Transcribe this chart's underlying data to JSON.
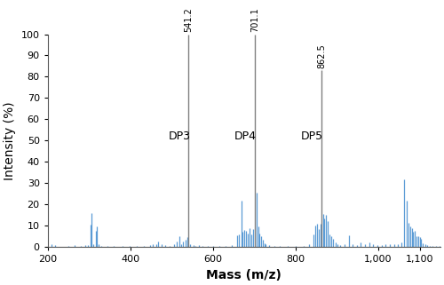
{
  "xlabel": "Mass (m/z)",
  "ylabel": "Intensity (%)",
  "xlim": [
    200,
    1150
  ],
  "ylim": [
    0,
    100
  ],
  "xticks": [
    200,
    400,
    600,
    800,
    1000,
    1100
  ],
  "xtick_labels": [
    "200",
    "400",
    "600",
    "800",
    "1,000",
    "1,100"
  ],
  "yticks": [
    0,
    10,
    20,
    30,
    40,
    50,
    60,
    70,
    80,
    90,
    100
  ],
  "bg_color": "#ffffff",
  "bar_color": "#5b9bd5",
  "tall_bar_color": "#808080",
  "annotations": [
    {
      "x": 541.2,
      "label": "541.2",
      "height": 100,
      "dp": "DP3",
      "dp_x": 492,
      "dp_y": 52
    },
    {
      "x": 701.1,
      "label": "701.1",
      "height": 100,
      "dp": "DP4",
      "dp_x": 652,
      "dp_y": 52
    },
    {
      "x": 862.5,
      "label": "862.5",
      "height": 83,
      "dp": "DP5",
      "dp_x": 812,
      "dp_y": 52
    }
  ],
  "peaks": [
    [
      210,
      1.5
    ],
    [
      218,
      0.8
    ],
    [
      250,
      0.5
    ],
    [
      265,
      0.8
    ],
    [
      280,
      0.5
    ],
    [
      290,
      1.0
    ],
    [
      298,
      0.8
    ],
    [
      303,
      10.5
    ],
    [
      306,
      16.0
    ],
    [
      311,
      1.5
    ],
    [
      316,
      7.5
    ],
    [
      319,
      9.5
    ],
    [
      323,
      1.2
    ],
    [
      330,
      0.5
    ],
    [
      345,
      0.5
    ],
    [
      360,
      0.5
    ],
    [
      380,
      0.5
    ],
    [
      398,
      0.5
    ],
    [
      415,
      0.5
    ],
    [
      432,
      0.5
    ],
    [
      448,
      0.8
    ],
    [
      455,
      1.2
    ],
    [
      462,
      1.5
    ],
    [
      468,
      2.5
    ],
    [
      475,
      1.5
    ],
    [
      485,
      0.8
    ],
    [
      495,
      0.5
    ],
    [
      505,
      1.5
    ],
    [
      512,
      2.5
    ],
    [
      518,
      5.0
    ],
    [
      522,
      1.2
    ],
    [
      528,
      2.5
    ],
    [
      533,
      3.5
    ],
    [
      538,
      4.5
    ],
    [
      541,
      100.0
    ],
    [
      545,
      1.2
    ],
    [
      552,
      0.8
    ],
    [
      558,
      0.5
    ],
    [
      565,
      0.8
    ],
    [
      575,
      0.5
    ],
    [
      588,
      0.5
    ],
    [
      600,
      0.5
    ],
    [
      615,
      0.5
    ],
    [
      630,
      0.5
    ],
    [
      645,
      0.8
    ],
    [
      658,
      5.5
    ],
    [
      663,
      6.0
    ],
    [
      668,
      22.0
    ],
    [
      672,
      7.0
    ],
    [
      676,
      8.0
    ],
    [
      680,
      7.5
    ],
    [
      684,
      6.5
    ],
    [
      688,
      9.0
    ],
    [
      693,
      6.0
    ],
    [
      697,
      8.5
    ],
    [
      701,
      100.0
    ],
    [
      705,
      25.5
    ],
    [
      709,
      9.5
    ],
    [
      712,
      6.5
    ],
    [
      716,
      5.0
    ],
    [
      720,
      3.5
    ],
    [
      724,
      1.8
    ],
    [
      728,
      1.5
    ],
    [
      735,
      0.8
    ],
    [
      748,
      0.5
    ],
    [
      762,
      0.5
    ],
    [
      780,
      0.5
    ],
    [
      800,
      0.5
    ],
    [
      820,
      0.5
    ],
    [
      832,
      1.2
    ],
    [
      842,
      6.0
    ],
    [
      847,
      10.0
    ],
    [
      851,
      10.8
    ],
    [
      856,
      8.5
    ],
    [
      860,
      11.0
    ],
    [
      862,
      83.0
    ],
    [
      866,
      15.5
    ],
    [
      869,
      13.5
    ],
    [
      873,
      15.0
    ],
    [
      877,
      12.0
    ],
    [
      881,
      6.0
    ],
    [
      886,
      5.0
    ],
    [
      891,
      3.8
    ],
    [
      896,
      2.2
    ],
    [
      901,
      1.5
    ],
    [
      908,
      1.0
    ],
    [
      918,
      1.2
    ],
    [
      928,
      5.5
    ],
    [
      938,
      1.2
    ],
    [
      948,
      1.0
    ],
    [
      958,
      2.0
    ],
    [
      968,
      1.2
    ],
    [
      978,
      2.0
    ],
    [
      988,
      1.5
    ],
    [
      998,
      1.0
    ],
    [
      1008,
      1.0
    ],
    [
      1018,
      1.5
    ],
    [
      1028,
      1.5
    ],
    [
      1038,
      1.5
    ],
    [
      1048,
      1.5
    ],
    [
      1055,
      2.0
    ],
    [
      1062,
      32.0
    ],
    [
      1068,
      22.0
    ],
    [
      1073,
      11.5
    ],
    [
      1077,
      9.5
    ],
    [
      1081,
      8.8
    ],
    [
      1084,
      7.0
    ],
    [
      1088,
      7.8
    ],
    [
      1092,
      5.0
    ],
    [
      1096,
      5.0
    ],
    [
      1100,
      4.5
    ],
    [
      1104,
      3.8
    ],
    [
      1108,
      1.8
    ],
    [
      1113,
      1.2
    ],
    [
      1118,
      1.0
    ],
    [
      1125,
      0.5
    ],
    [
      1132,
      0.5
    ],
    [
      1140,
      0.5
    ],
    [
      1148,
      0.5
    ]
  ]
}
